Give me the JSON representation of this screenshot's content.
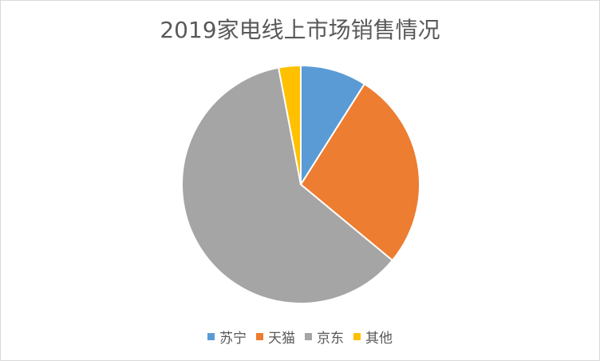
{
  "chart_data": {
    "type": "pie",
    "title": "2019家电线上市场销售情况",
    "categories": [
      "苏宁",
      "天猫",
      "京东",
      "其他"
    ],
    "values": [
      9,
      27,
      61,
      3
    ],
    "unit": "percent (estimated from slice angles)",
    "colors": [
      "#5b9bd5",
      "#ed7d31",
      "#a5a5a5",
      "#ffc000"
    ],
    "legend_position": "bottom",
    "start_angle": "12 o'clock, clockwise"
  },
  "legend": {
    "items": [
      {
        "label": "苏宁",
        "color": "#5b9bd5"
      },
      {
        "label": "天猫",
        "color": "#ed7d31"
      },
      {
        "label": "京东",
        "color": "#a5a5a5"
      },
      {
        "label": "其他",
        "color": "#ffc000"
      }
    ]
  }
}
